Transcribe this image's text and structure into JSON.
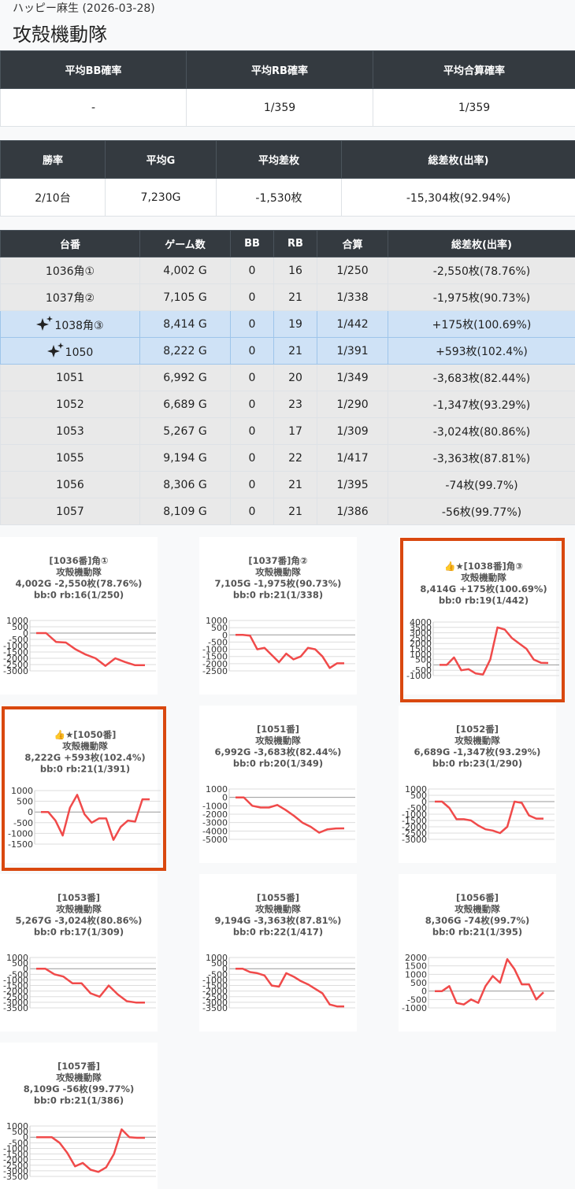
{
  "header": {
    "store": "ハッピー麻生 (2026-03-28)",
    "title": "攻殻機動隊"
  },
  "summary1": {
    "columns": [
      "平均BB確率",
      "平均RB確率",
      "平均合算確率"
    ],
    "rows": [
      [
        "-",
        "1/359",
        "1/359"
      ]
    ]
  },
  "summary2": {
    "columns": [
      "勝率",
      "平均G",
      "平均差枚",
      "総差枚(出率)"
    ],
    "rows": [
      [
        "2/10台",
        "7,230G",
        "-1,530枚",
        "-15,304枚(92.94%)"
      ]
    ]
  },
  "machines": {
    "columns": [
      "台番",
      "ゲーム数",
      "BB",
      "RB",
      "合算",
      "総差枚(出率)"
    ],
    "rows": [
      [
        "1036角①",
        "4,002 G",
        "0",
        "16",
        "1/250",
        "-2,550枚(78.76%)"
      ],
      [
        "1037角②",
        "7,105 G",
        "0",
        "21",
        "1/338",
        "-1,975枚(90.73%)"
      ],
      [
        "1038角③",
        "8,414 G",
        "0",
        "19",
        "1/442",
        "+175枚(100.69%)"
      ],
      [
        "1050",
        "8,222 G",
        "0",
        "21",
        "1/391",
        "+593枚(102.4%)"
      ],
      [
        "1051",
        "6,992 G",
        "0",
        "20",
        "1/349",
        "-3,683枚(82.44%)"
      ],
      [
        "1052",
        "6,689 G",
        "0",
        "23",
        "1/290",
        "-1,347枚(93.29%)"
      ],
      [
        "1053",
        "5,267 G",
        "0",
        "17",
        "1/309",
        "-3,024枚(80.86%)"
      ],
      [
        "1055",
        "9,194 G",
        "0",
        "22",
        "1/417",
        "-3,363枚(87.81%)"
      ],
      [
        "1056",
        "8,306 G",
        "0",
        "21",
        "1/395",
        "-74枚(99.7%)"
      ],
      [
        "1057",
        "8,109 G",
        "0",
        "21",
        "1/386",
        "-56枚(99.77%)"
      ]
    ],
    "highlighted": [
      false,
      false,
      true,
      true,
      false,
      false,
      false,
      false,
      false,
      false
    ]
  },
  "chart_data": [
    {
      "type": "line",
      "title_lines": [
        "[1036番]角①",
        "攻殻機動隊",
        "4,002G -2,550枚(78.76%)",
        "bb:0 rb:16(1/250)"
      ],
      "highlight": false,
      "color": "#f04a4a",
      "values": [
        0,
        0,
        -700,
        -750,
        -1300,
        -1700,
        -2000,
        -2600,
        -2000,
        -2300,
        -2550,
        -2550
      ],
      "ylim": [
        -3000,
        1000
      ],
      "yticks": [
        1000,
        500,
        0,
        -500,
        -1000,
        -1500,
        -2000,
        -2500,
        -3000
      ],
      "grid": true
    },
    {
      "type": "line",
      "title_lines": [
        "[1037番]角②",
        "攻殻機動隊",
        "7,105G -1,975枚(90.73%)",
        "bb:0 rb:21(1/338)"
      ],
      "highlight": false,
      "color": "#f04a4a",
      "values": [
        0,
        0,
        -50,
        -1000,
        -900,
        -1400,
        -1900,
        -1300,
        -1700,
        -1500,
        -900,
        -1000,
        -1500,
        -2300,
        -1975,
        -1975
      ],
      "ylim": [
        -2500,
        1000
      ],
      "yticks": [
        1000,
        500,
        0,
        -500,
        -1000,
        -1500,
        -2000,
        -2500
      ],
      "grid": true
    },
    {
      "type": "line",
      "title_lines": [
        "👍★[1038番]角③",
        "攻殻機動隊",
        "8,414G +175枚(100.69%)",
        "bb:0 rb:19(1/442)"
      ],
      "highlight": true,
      "color": "#f04a4a",
      "values": [
        0,
        0,
        700,
        -500,
        -400,
        -800,
        -900,
        500,
        3500,
        3300,
        2500,
        2000,
        1500,
        500,
        200,
        175
      ],
      "ylim": [
        -1000,
        4000
      ],
      "yticks": [
        4000,
        3500,
        3000,
        2500,
        2000,
        1500,
        1000,
        500,
        0,
        -500,
        -1000
      ],
      "grid": true
    },
    {
      "type": "line",
      "title_lines": [
        "👍★[1050番]",
        "攻殻機動隊",
        "8,222G +593枚(102.4%)",
        "bb:0 rb:21(1/391)"
      ],
      "highlight": true,
      "color": "#f04a4a",
      "values": [
        0,
        0,
        -400,
        -1100,
        200,
        800,
        -100,
        -500,
        -300,
        -300,
        -1300,
        -700,
        -400,
        -450,
        593,
        593
      ],
      "ylim": [
        -1500,
        1000
      ],
      "yticks": [
        1000,
        500,
        0,
        -500,
        -1000,
        -1500
      ],
      "grid": true
    },
    {
      "type": "line",
      "title_lines": [
        "[1051番]",
        "攻殻機動隊",
        "6,992G -3,683枚(82.44%)",
        "bb:0 rb:20(1/349)"
      ],
      "highlight": false,
      "color": "#f04a4a",
      "values": [
        0,
        0,
        -1000,
        -1200,
        -1200,
        -900,
        -1500,
        -2200,
        -3000,
        -3500,
        -4200,
        -3800,
        -3700,
        -3683
      ],
      "ylim": [
        -5000,
        1000
      ],
      "yticks": [
        1000,
        0,
        -1000,
        -2000,
        -3000,
        -4000,
        -5000
      ],
      "grid": true
    },
    {
      "type": "line",
      "title_lines": [
        "[1052番]",
        "攻殻機動隊",
        "6,689G -1,347枚(93.29%)",
        "bb:0 rb:23(1/290)"
      ],
      "highlight": false,
      "color": "#f04a4a",
      "values": [
        0,
        0,
        -500,
        -1400,
        -1400,
        -1500,
        -1900,
        -2200,
        -2300,
        -2500,
        -2000,
        0,
        -100,
        -1100,
        -1347,
        -1347
      ],
      "ylim": [
        -3000,
        1000
      ],
      "yticks": [
        1000,
        500,
        0,
        -500,
        -1000,
        -1500,
        -2000,
        -2500,
        -3000
      ],
      "grid": true
    },
    {
      "type": "line",
      "title_lines": [
        "[1053番]",
        "攻殻機動隊",
        "5,267G -3,024枚(80.86%)",
        "bb:0 rb:17(1/309)"
      ],
      "highlight": false,
      "color": "#f04a4a",
      "values": [
        0,
        0,
        -500,
        -700,
        -1300,
        -1300,
        -2200,
        -2500,
        -1500,
        -2300,
        -2900,
        -3024,
        -3024
      ],
      "ylim": [
        -3500,
        1000
      ],
      "yticks": [
        1000,
        500,
        0,
        -500,
        -1000,
        -1500,
        -2000,
        -2500,
        -3000,
        -3500
      ],
      "grid": true
    },
    {
      "type": "line",
      "title_lines": [
        "[1055番]",
        "攻殻機動隊",
        "9,194G -3,363枚(87.81%)",
        "bb:0 rb:22(1/417)"
      ],
      "highlight": false,
      "color": "#f04a4a",
      "values": [
        0,
        0,
        -300,
        -400,
        -600,
        -1500,
        -1600,
        -400,
        -700,
        -1100,
        -1400,
        -1800,
        -2200,
        -3200,
        -3363,
        -3363
      ],
      "ylim": [
        -3500,
        1000
      ],
      "yticks": [
        1000,
        500,
        0,
        -500,
        -1000,
        -1500,
        -2000,
        -2500,
        -3000,
        -3500
      ],
      "grid": true
    },
    {
      "type": "line",
      "title_lines": [
        "[1056番]",
        "攻殻機動隊",
        "8,306G -74枚(99.7%)",
        "bb:0 rb:21(1/395)"
      ],
      "highlight": false,
      "color": "#f04a4a",
      "values": [
        0,
        0,
        300,
        -700,
        -800,
        -500,
        -700,
        300,
        900,
        500,
        1900,
        1300,
        400,
        400,
        -500,
        -74
      ],
      "ylim": [
        -1000,
        2000
      ],
      "yticks": [
        2000,
        1500,
        1000,
        500,
        0,
        -500,
        -1000
      ],
      "grid": true
    },
    {
      "type": "line",
      "title_lines": [
        "[1057番]",
        "攻殻機動隊",
        "8,109G -56枚(99.77%)",
        "bb:0 rb:21(1/386)"
      ],
      "highlight": false,
      "color": "#f04a4a",
      "values": [
        0,
        0,
        0,
        -500,
        -1400,
        -2600,
        -2300,
        -2900,
        -3100,
        -2700,
        -1500,
        700,
        0,
        -56,
        -56
      ],
      "ylim": [
        -3500,
        1000
      ],
      "yticks": [
        1000,
        500,
        0,
        -500,
        -1000,
        -1500,
        -2000,
        -2500,
        -3000,
        -3500
      ],
      "grid": true
    }
  ]
}
